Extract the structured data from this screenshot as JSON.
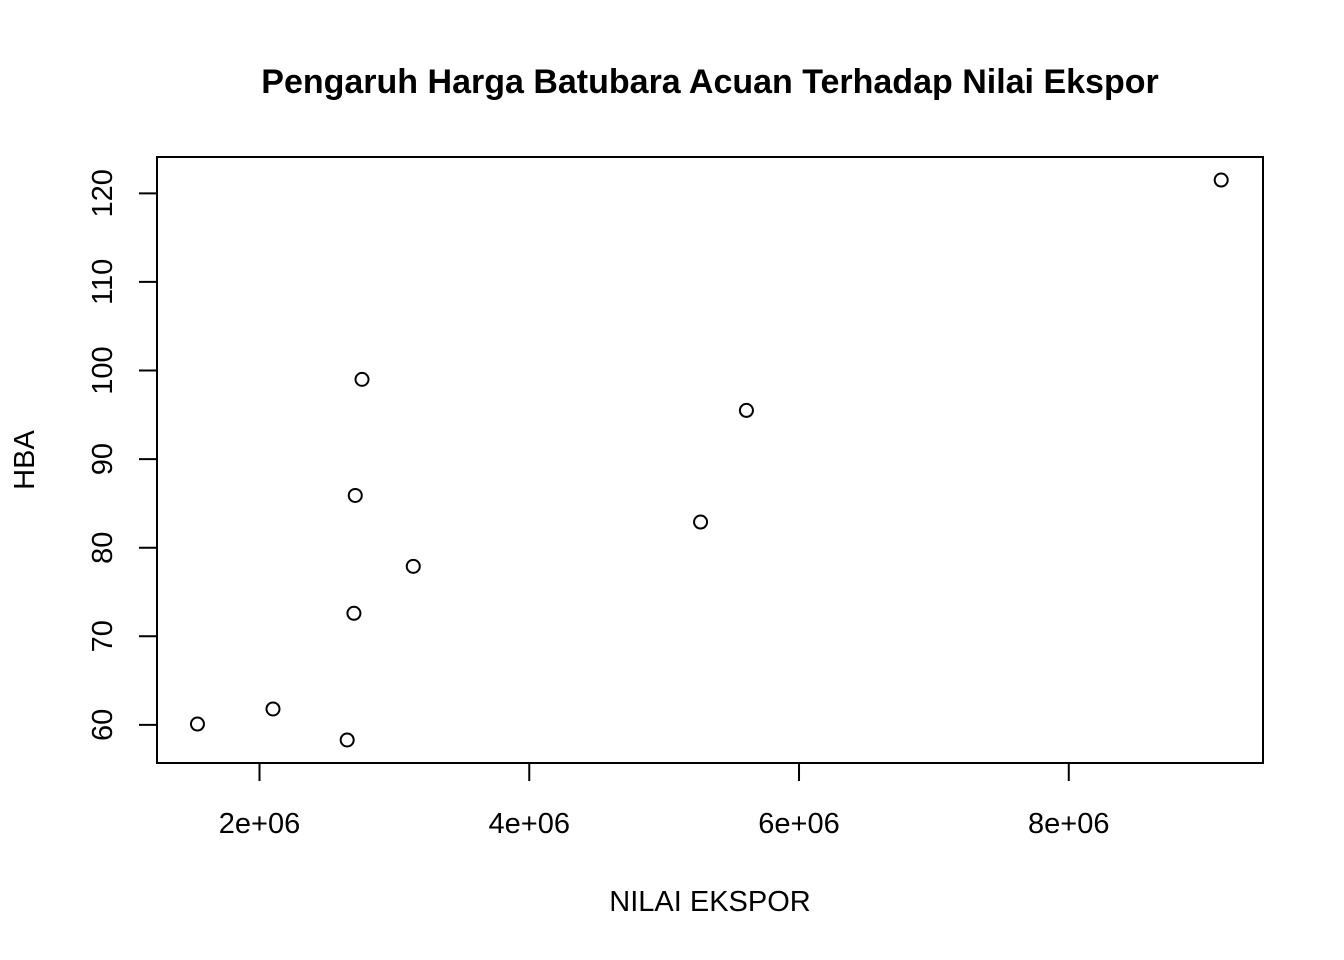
{
  "chart_data": {
    "type": "scatter",
    "title": "Pengaruh Harga Batubara Acuan Terhadap Nilai Ekspor",
    "xlabel": "NILAI EKSPOR",
    "ylabel": "HBA",
    "xlim": [
      1240000,
      9440000
    ],
    "ylim": [
      55.7,
      124.1
    ],
    "x_ticks": [
      {
        "value": 2000000,
        "label": "2e+06"
      },
      {
        "value": 4000000,
        "label": "4e+06"
      },
      {
        "value": 6000000,
        "label": "6e+06"
      },
      {
        "value": 8000000,
        "label": "8e+06"
      }
    ],
    "y_ticks": [
      {
        "value": 60,
        "label": "60"
      },
      {
        "value": 70,
        "label": "70"
      },
      {
        "value": 80,
        "label": "80"
      },
      {
        "value": 90,
        "label": "90"
      },
      {
        "value": 100,
        "label": "100"
      },
      {
        "value": 110,
        "label": "110"
      },
      {
        "value": 120,
        "label": "120"
      }
    ],
    "grid": false,
    "marker": "open-circle",
    "series": [
      {
        "points": [
          {
            "x": 1540000,
            "y": 60.1
          },
          {
            "x": 2100000,
            "y": 61.8
          },
          {
            "x": 2650000,
            "y": 58.3
          },
          {
            "x": 2700000,
            "y": 72.6
          },
          {
            "x": 2710000,
            "y": 85.9
          },
          {
            "x": 2760000,
            "y": 99.0
          },
          {
            "x": 3140000,
            "y": 77.9
          },
          {
            "x": 5270000,
            "y": 82.9
          },
          {
            "x": 5610000,
            "y": 95.5
          },
          {
            "x": 9130000,
            "y": 121.5
          }
        ]
      }
    ]
  }
}
